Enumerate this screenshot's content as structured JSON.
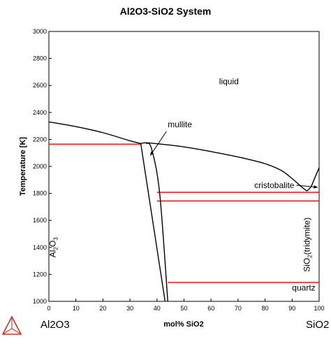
{
  "chart_data": {
    "type": "line",
    "title": "Al2O3-SiO2 System",
    "xlabel": "mol% SiO2",
    "ylabel": "Temperature [K]",
    "xlim": [
      0,
      100
    ],
    "ylim": [
      1000,
      3000
    ],
    "x_ticks": [
      0,
      10,
      20,
      30,
      40,
      50,
      60,
      70,
      80,
      90,
      100
    ],
    "y_ticks": [
      1000,
      1200,
      1400,
      1600,
      1800,
      2000,
      2200,
      2400,
      2600,
      2800,
      3000
    ],
    "grid": false,
    "endpoints": {
      "left": "Al2O3",
      "right": "SiO2"
    },
    "colors": {
      "phase_boundary": "#000000",
      "invariant_line": "#dd0000",
      "logo": "#c0392b"
    },
    "series": [
      {
        "values": [
          [
            0,
            2330
          ],
          [
            10,
            2295
          ],
          [
            20,
            2250
          ],
          [
            30,
            2190
          ],
          [
            34,
            2170
          ]
        ]
      },
      {
        "values": [
          [
            34,
            2170
          ],
          [
            36,
            2175
          ],
          [
            40,
            2168
          ],
          [
            50,
            2145
          ],
          [
            60,
            2110
          ],
          [
            70,
            2070
          ],
          [
            80,
            2020
          ],
          [
            86,
            1970
          ],
          [
            90,
            1910
          ],
          [
            94,
            1840
          ],
          [
            95.5,
            1818
          ]
        ]
      },
      {
        "values": [
          [
            95.5,
            1818
          ],
          [
            97,
            1850
          ],
          [
            98.5,
            1920
          ],
          [
            100,
            1990
          ]
        ]
      },
      {
        "values": [
          [
            34,
            2170
          ],
          [
            43,
            1000
          ]
        ]
      },
      {
        "values": [
          [
            36,
            2172
          ],
          [
            38,
            2130
          ],
          [
            41,
            1800
          ],
          [
            44,
            1000
          ]
        ]
      }
    ],
    "invariant_lines": [
      {
        "x": [
          0,
          34
        ],
        "y": 2165
      },
      {
        "x": [
          40,
          100
        ],
        "y": 1808
      },
      {
        "x": [
          40,
          100
        ],
        "y": 1744
      },
      {
        "x": [
          44,
          100
        ],
        "y": 1140
      }
    ],
    "annotations": [
      {
        "text": "liquid",
        "x": 63,
        "y": 2610
      },
      {
        "text": "mullite",
        "x": 44,
        "y": 2290,
        "arrow_to": [
          37.5,
          2080
        ]
      },
      {
        "text": "cristobalite",
        "x": 76,
        "y": 1840,
        "arrow_to": [
          100,
          1845
        ]
      },
      {
        "text": "quartz",
        "x": 90,
        "y": 1080
      }
    ],
    "vertical_labels": [
      {
        "base": "Al",
        "sub1": "2",
        "mid": "O",
        "sub2": "3",
        "x": 2.5,
        "y": 1400
      },
      {
        "base": "SiO",
        "sub1": "2",
        "mid": "(tridymite)",
        "sub2": "",
        "x": 96.5,
        "y": 1420
      }
    ]
  }
}
